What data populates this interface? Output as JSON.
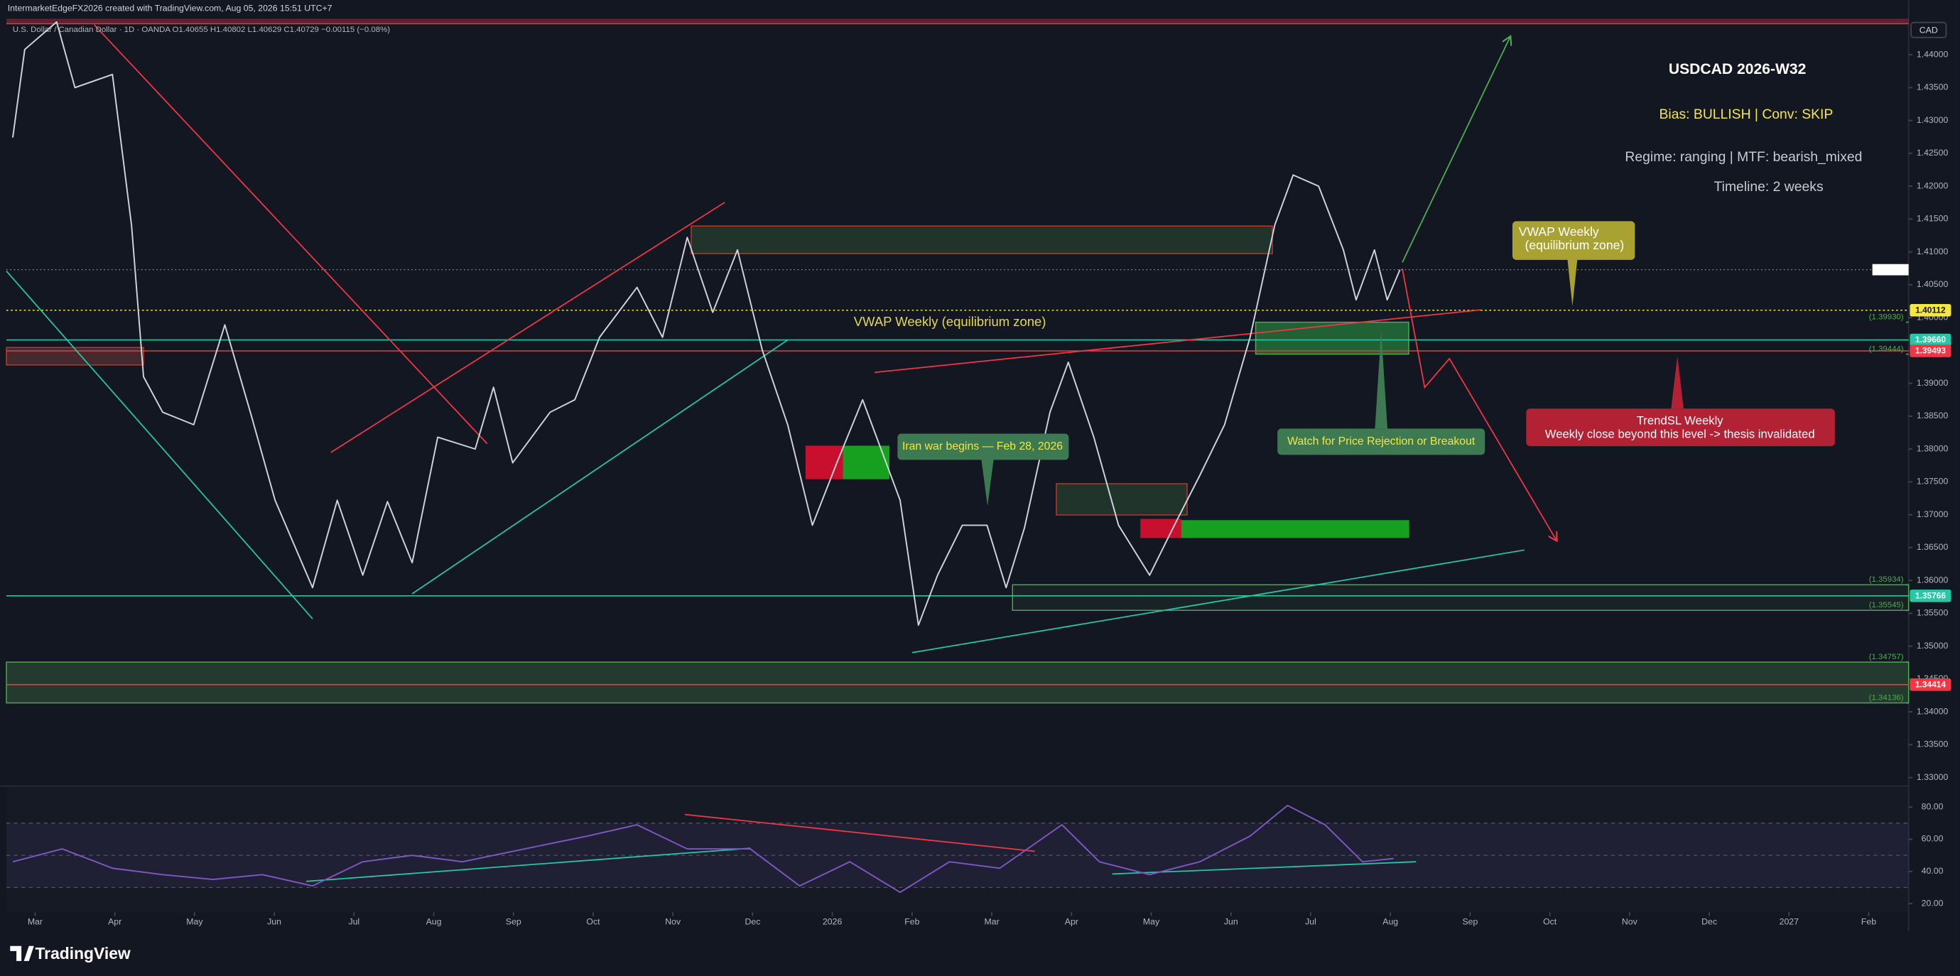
{
  "header": {
    "attribution": "IntermarketEdgeFX2026 created with TradingView.com, Aug 05, 2026 15:51 UTC+7",
    "symbol_line": "U.S. Dollar / Canadian Dollar · 1D · OANDA  O1.40655 H1.40802 L1.40629 C1.40729 −0.00115 (−0.08%)",
    "currency": "CAD"
  },
  "annotations": {
    "bias": "Bias: BULLISH | Conv: SKIP",
    "regime": "Regime: ranging | MTF: bearish_mixed",
    "timeline": "Timeline: 2 weeks",
    "vwap_label": "VWAP Weekly (equilibrium zone)",
    "vwap_box": [
      "VWAP Weekly",
      "(equilibrium zone)"
    ],
    "iran": "Iran war begins — Feb 28, 2026",
    "watch": "Watch for Price Rejection or Breakout",
    "trendsl": [
      "TrendSL Weekly",
      "Weekly close beyond this level -> thesis invalidated"
    ]
  },
  "chart_data": [
    {
      "type": "line",
      "title": "USDCAD 2026-W32",
      "series": [
        {
          "color": "#d1d4dc",
          "x": [
            -0.28,
            -0.13,
            0.27,
            0.5,
            0.97,
            1.21,
            1.36,
            1.6,
            1.99,
            2.38,
            2.7,
            3.01,
            3.48,
            3.79,
            4.11,
            4.42,
            4.73,
            5.05,
            5.52,
            5.75,
            5.99,
            6.46,
            6.77,
            7.08,
            7.55,
            7.87,
            8.18,
            8.5,
            8.81,
            9.12,
            9.44,
            9.75,
            10.06,
            10.38,
            10.85,
            11.08,
            11.32,
            11.63,
            11.94,
            12.18,
            12.41,
            12.73,
            12.96,
            13.28,
            13.59,
            13.98,
            14.29,
            14.61,
            14.92,
            15.24,
            15.55,
            15.78,
            16.1,
            16.41,
            16.57,
            16.8,
            16.96,
            17.12
          ],
          "values": [
            1.4274,
            1.4408,
            1.445,
            1.435,
            1.437,
            1.414,
            1.391,
            1.3856,
            1.3837,
            1.3989,
            1.3856,
            1.3722,
            1.3589,
            1.3722,
            1.3608,
            1.372,
            1.3627,
            1.3818,
            1.38,
            1.3894,
            1.3779,
            1.3856,
            1.3875,
            1.397,
            1.4046,
            1.397,
            1.4122,
            1.4008,
            1.4103,
            1.3951,
            1.3837,
            1.3684,
            1.378,
            1.3875,
            1.3722,
            1.3532,
            1.3608,
            1.3684,
            1.3684,
            1.3589,
            1.368,
            1.3856,
            1.3932,
            1.3818,
            1.3684,
            1.3608,
            1.3684,
            1.376,
            1.3837,
            1.397,
            1.4141,
            1.4217,
            1.42,
            1.4103,
            1.4027,
            1.4103,
            1.4027,
            1.40729
          ]
        }
      ],
      "xlim": [
        -0.36,
        23.5
      ],
      "ylim": [
        1.3289,
        1.4451
      ],
      "yticks": [
        {
          "value": 1.33,
          "label": "1.33000"
        },
        {
          "value": 1.335,
          "label": "1.33500"
        },
        {
          "value": 1.34,
          "label": "1.34000"
        },
        {
          "value": 1.345,
          "label": "1.34500"
        },
        {
          "value": 1.35,
          "label": "1.35000"
        },
        {
          "value": 1.355,
          "label": "1.35500"
        },
        {
          "value": 1.36,
          "label": "1.36000"
        },
        {
          "value": 1.365,
          "label": "1.36500"
        },
        {
          "value": 1.37,
          "label": "1.37000"
        },
        {
          "value": 1.375,
          "label": "1.37500"
        },
        {
          "value": 1.38,
          "label": "1.38000"
        },
        {
          "value": 1.385,
          "label": "1.38500"
        },
        {
          "value": 1.39,
          "label": "1.39000"
        },
        {
          "value": 1.395,
          "label": "1.39500"
        },
        {
          "value": 1.4,
          "label": "1.40000"
        },
        {
          "value": 1.405,
          "label": "1.40500"
        },
        {
          "value": 1.41,
          "label": "1.41000"
        },
        {
          "value": 1.415,
          "label": "1.41500"
        },
        {
          "value": 1.42,
          "label": "1.42000"
        },
        {
          "value": 1.425,
          "label": "1.42500"
        },
        {
          "value": 1.43,
          "label": "1.43000"
        },
        {
          "value": 1.435,
          "label": "1.43500"
        },
        {
          "value": 1.44,
          "label": "1.44000"
        }
      ],
      "levels": [
        {
          "value": 1.40112,
          "label": "1.40112",
          "color": "#f5e642",
          "kind": "badge",
          "dotted": true
        },
        {
          "value": 1.3966,
          "label": "1.39660",
          "color": "#26c6a6",
          "kind": "badge"
        },
        {
          "value": 1.39493,
          "label": "1.39493",
          "color": "#f23645",
          "kind": "badge"
        },
        {
          "value": 1.35766,
          "label": "1.35766",
          "color": "#26c6a6",
          "kind": "badge"
        },
        {
          "value": 1.34414,
          "label": "1.34414",
          "color": "#f23645",
          "kind": "badge"
        },
        {
          "value": 1.3993,
          "label": "(1.39930)",
          "color": "#4caf50",
          "kind": "bracket"
        },
        {
          "value": 1.39444,
          "label": "(1.39444)",
          "color": "#4caf50",
          "kind": "bracket"
        },
        {
          "value": 1.35934,
          "label": "(1.35934)",
          "color": "#4caf50",
          "kind": "bracket"
        },
        {
          "value": 1.35545,
          "label": "(1.35545)",
          "color": "#4caf50",
          "kind": "bracket"
        },
        {
          "value": 1.34757,
          "label": "(1.34757)",
          "color": "#4caf50",
          "kind": "bracket"
        },
        {
          "value": 1.34136,
          "label": "(1.34136)",
          "color": "#4caf50",
          "kind": "bracket"
        }
      ],
      "zones": [
        {
          "x": [
            8.23,
            15.52
          ],
          "y": [
            1.40974,
            1.41393
          ],
          "fill": "rgba(76,140,76,0.25)",
          "stroke": "#c0392b"
        },
        {
          "x": [
            15.31,
            17.23
          ],
          "y": [
            1.39444,
            1.3993
          ],
          "fill": "rgba(46,160,67,0.55)",
          "stroke": "#4caf50"
        },
        {
          "x": [
            14.37,
            17.23
          ],
          "y": [
            1.36653,
            1.3691
          ],
          "fill": "#17a01f",
          "stroke": "#17a01f"
        },
        {
          "x": [
            13.87,
            14.37
          ],
          "y": [
            1.36653,
            1.36929
          ],
          "fill": "#c8102e",
          "stroke": "#c8102e"
        },
        {
          "x": [
            9.67,
            10.14
          ],
          "y": [
            1.37548,
            1.38043
          ],
          "fill": "#c8102e",
          "stroke": "#c8102e"
        },
        {
          "x": [
            10.14,
            10.71
          ],
          "y": [
            1.37548,
            1.38043
          ],
          "fill": "#17a01f",
          "stroke": "#17a01f"
        },
        {
          "x": [
            12.81,
            14.45
          ],
          "y": [
            1.36996,
            1.37472
          ],
          "fill": "rgba(76,140,76,0.25)",
          "stroke": "#c0392b"
        },
        {
          "x": [
            12.26,
            23.5
          ],
          "y": [
            1.35545,
            1.35934
          ],
          "fill": "rgba(76,175,80,0.08)",
          "stroke": "#4caf50"
        },
        {
          "x": [
            -0.36,
            23.5
          ],
          "y": [
            1.34136,
            1.34757
          ],
          "fill": "rgba(76,140,76,0.3)",
          "stroke": "#4caf50"
        },
        {
          "x": [
            -0.36,
            1.36
          ],
          "y": [
            1.39279,
            1.39545
          ],
          "fill": "rgba(120,60,60,0.5)",
          "stroke": "#c0392b"
        }
      ],
      "lines": [
        {
          "x": [
            0.74,
            5.67
          ],
          "y": [
            1.44457,
            1.38081
          ],
          "color": "#f23645"
        },
        {
          "x": [
            -0.36,
            3.48
          ],
          "y": [
            1.40707,
            1.35416
          ],
          "color": "#26c6a6"
        },
        {
          "x": [
            4.73,
            9.44
          ],
          "y": [
            1.35797,
            1.3966
          ],
          "color": "#26c6a6"
        },
        {
          "x": [
            3.71,
            8.65
          ],
          "y": [
            1.37948,
            1.41754
          ],
          "color": "#f23645"
        },
        {
          "x": [
            10.53,
            18.13
          ],
          "y": [
            1.39166,
            1.40117
          ],
          "color": "#f23645"
        },
        {
          "x": [
            11.0,
            18.68
          ],
          "y": [
            1.34902,
            1.36463
          ],
          "color": "#26c6a6"
        },
        {
          "x": [
            17.15,
            18.5
          ],
          "y": [
            1.40841,
            1.44266
          ],
          "color": "#4caf50",
          "arrow": true
        },
        {
          "x": [
            17.15,
            17.43,
            17.74,
            19.08
          ],
          "y": [
            1.40746,
            1.38938,
            1.39376,
            1.36616
          ],
          "color": "#f23645",
          "arrow": true
        }
      ]
    },
    {
      "type": "line",
      "series": [
        {
          "color": "#7e57c2",
          "x": [
            -0.28,
            0.34,
            0.97,
            1.6,
            2.23,
            2.85,
            3.48,
            4.11,
            4.73,
            5.36,
            6.14,
            6.93,
            7.55,
            8.18,
            8.97,
            9.59,
            10.22,
            10.85,
            11.47,
            12.1,
            12.88,
            13.35,
            13.98,
            14.61,
            15.24,
            15.71,
            16.18,
            16.65,
            17.04
          ],
          "values": [
            46,
            54,
            42,
            38,
            35,
            38,
            31,
            46,
            50,
            46,
            54,
            62,
            69,
            54,
            54,
            31,
            46,
            27,
            46,
            42,
            69,
            46,
            38,
            46,
            62,
            81,
            69,
            46,
            48
          ]
        }
      ],
      "xlim": [
        -0.36,
        23.5
      ],
      "ylim": [
        14.6,
        92.3
      ],
      "xticks": [
        {
          "value": 0,
          "label": "Mar"
        },
        {
          "value": 1,
          "label": "Apr"
        },
        {
          "value": 2,
          "label": "May"
        },
        {
          "value": 3,
          "label": "Jun"
        },
        {
          "value": 4,
          "label": "Jul"
        },
        {
          "value": 5,
          "label": "Aug"
        },
        {
          "value": 6,
          "label": "Sep"
        },
        {
          "value": 7,
          "label": "Oct"
        },
        {
          "value": 8,
          "label": "Nov"
        },
        {
          "value": 9,
          "label": "Dec"
        },
        {
          "value": 10,
          "label": "2026"
        },
        {
          "value": 11,
          "label": "Feb"
        },
        {
          "value": 12,
          "label": "Mar"
        },
        {
          "value": 13,
          "label": "Apr"
        },
        {
          "value": 14,
          "label": "May"
        },
        {
          "value": 15,
          "label": "Jun"
        },
        {
          "value": 16,
          "label": "Jul"
        },
        {
          "value": 17,
          "label": "Aug"
        },
        {
          "value": 18,
          "label": "Sep"
        },
        {
          "value": 19,
          "label": "Oct"
        },
        {
          "value": 20,
          "label": "Nov"
        },
        {
          "value": 21,
          "label": "Dec"
        },
        {
          "value": 22,
          "label": "2027"
        },
        {
          "value": 23,
          "label": "Feb"
        }
      ],
      "yticks": [
        {
          "value": 20,
          "label": "20.00"
        },
        {
          "value": 40,
          "label": "40.00"
        },
        {
          "value": 60,
          "label": "60.00"
        },
        {
          "value": 80,
          "label": "80.00"
        }
      ],
      "levels": [
        70,
        50,
        30
      ],
      "lines": [
        {
          "x": [
            8.15,
            12.54
          ],
          "y": [
            75.4,
            52.5
          ],
          "color": "#f23645"
        },
        {
          "x": [
            3.4,
            8.97
          ],
          "y": [
            33.8,
            54.4
          ],
          "color": "#26c6a6"
        },
        {
          "x": [
            13.51,
            17.32
          ],
          "y": [
            38.4,
            46
          ],
          "color": "#26c6a6"
        }
      ]
    }
  ]
}
